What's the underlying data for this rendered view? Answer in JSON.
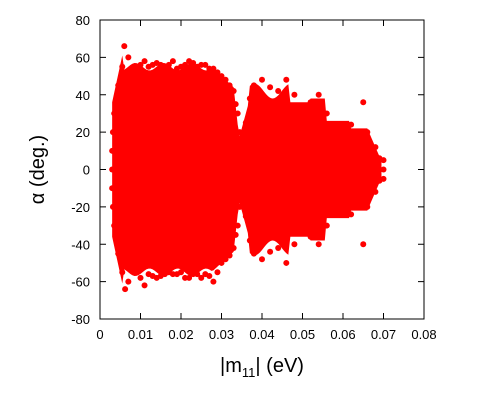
{
  "chart_data": {
    "type": "scatter",
    "title": "",
    "xlabel": {
      "prefix": "|m",
      "subscript": "11",
      "suffix": "| (eV)"
    },
    "ylabel": "α (deg.)",
    "xlim": [
      0,
      0.08
    ],
    "ylim": [
      -80,
      80
    ],
    "xticks": [
      0,
      0.01,
      0.02,
      0.03,
      0.04,
      0.05,
      0.06,
      0.07,
      0.08
    ],
    "xtick_labels": [
      "0",
      "0.01",
      "0.02",
      "0.03",
      "0.04",
      "0.05",
      "0.06",
      "0.07",
      "0.08"
    ],
    "yticks": [
      -80,
      -60,
      -40,
      -20,
      0,
      20,
      40,
      60,
      80
    ],
    "ytick_labels": [
      "-80",
      "-60",
      "-40",
      "-20",
      "0",
      "20",
      "40",
      "60",
      "80"
    ],
    "grid": false,
    "legend": "none",
    "color": "#ff0000",
    "series": [
      {
        "region_note_free": true,
        "points": [
          [
            0.003,
            0.0
          ],
          [
            0.003,
            10.0
          ],
          [
            0.003,
            -10.0
          ],
          [
            0.0032,
            20.0
          ],
          [
            0.0032,
            -20.0
          ],
          [
            0.0035,
            30.0
          ],
          [
            0.0035,
            -30.0
          ],
          [
            0.004,
            36.0
          ],
          [
            0.004,
            -36.0
          ],
          [
            0.0045,
            45.0
          ],
          [
            0.0045,
            -45.0
          ],
          [
            0.0055,
            55.0
          ],
          [
            0.0055,
            -55.0
          ],
          [
            0.006,
            66.0
          ],
          [
            0.0062,
            -64.0
          ],
          [
            0.007,
            60.0
          ],
          [
            0.007,
            -60.0
          ],
          [
            0.008,
            50.0
          ],
          [
            0.008,
            -50.0
          ],
          [
            0.009,
            54.0
          ],
          [
            0.009,
            -54.0
          ],
          [
            0.01,
            56.0
          ],
          [
            0.01,
            -58.0
          ],
          [
            0.011,
            58.0
          ],
          [
            0.011,
            -62.0
          ],
          [
            0.012,
            55.0
          ],
          [
            0.012,
            -56.0
          ],
          [
            0.013,
            56.0
          ],
          [
            0.013,
            -57.0
          ],
          [
            0.014,
            57.0
          ],
          [
            0.014,
            -58.0
          ],
          [
            0.015,
            56.0
          ],
          [
            0.015,
            -57.0
          ],
          [
            0.016,
            54.0
          ],
          [
            0.016,
            -56.0
          ],
          [
            0.017,
            56.0
          ],
          [
            0.017,
            -55.0
          ],
          [
            0.018,
            58.0
          ],
          [
            0.018,
            -56.0
          ],
          [
            0.019,
            54.0
          ],
          [
            0.019,
            -56.0
          ],
          [
            0.02,
            55.0
          ],
          [
            0.02,
            -55.0
          ],
          [
            0.021,
            56.0
          ],
          [
            0.021,
            -58.0
          ],
          [
            0.022,
            58.0
          ],
          [
            0.022,
            -58.0
          ],
          [
            0.023,
            57.0
          ],
          [
            0.023,
            -56.0
          ],
          [
            0.024,
            55.0
          ],
          [
            0.024,
            -56.0
          ],
          [
            0.025,
            56.0
          ],
          [
            0.025,
            -58.0
          ],
          [
            0.026,
            56.0
          ],
          [
            0.026,
            -56.0
          ],
          [
            0.027,
            54.0
          ],
          [
            0.027,
            -57.0
          ],
          [
            0.028,
            54.0
          ],
          [
            0.028,
            -60.0
          ],
          [
            0.029,
            52.0
          ],
          [
            0.029,
            -55.0
          ],
          [
            0.03,
            50.0
          ],
          [
            0.03,
            -50.0
          ],
          [
            0.031,
            48.0
          ],
          [
            0.031,
            -48.0
          ],
          [
            0.032,
            45.0
          ],
          [
            0.032,
            -46.0
          ],
          [
            0.033,
            42.0
          ],
          [
            0.033,
            -42.0
          ],
          [
            0.0335,
            35.0
          ],
          [
            0.0335,
            -35.0
          ],
          [
            0.034,
            30.0
          ],
          [
            0.034,
            -30.0
          ],
          [
            0.0345,
            20.0
          ],
          [
            0.0345,
            -20.0
          ],
          [
            0.035,
            10.0
          ],
          [
            0.035,
            -10.0
          ],
          [
            0.035,
            0.0
          ],
          [
            0.036,
            25.0
          ],
          [
            0.036,
            -25.0
          ],
          [
            0.037,
            38.0
          ],
          [
            0.037,
            -38.0
          ],
          [
            0.038,
            45.0
          ],
          [
            0.038,
            -45.0
          ],
          [
            0.04,
            48.0
          ],
          [
            0.04,
            -48.0
          ],
          [
            0.042,
            44.0
          ],
          [
            0.042,
            -44.0
          ],
          [
            0.044,
            42.0
          ],
          [
            0.044,
            -42.0
          ],
          [
            0.046,
            48.0
          ],
          [
            0.046,
            -50.0
          ],
          [
            0.048,
            40.0
          ],
          [
            0.048,
            -40.0
          ],
          [
            0.05,
            30.0
          ],
          [
            0.05,
            -30.0
          ],
          [
            0.052,
            36.0
          ],
          [
            0.052,
            -36.0
          ],
          [
            0.054,
            40.0
          ],
          [
            0.054,
            -40.0
          ],
          [
            0.056,
            30.0
          ],
          [
            0.056,
            -30.0
          ],
          [
            0.058,
            24.0
          ],
          [
            0.058,
            -24.0
          ],
          [
            0.06,
            20.0
          ],
          [
            0.06,
            -20.0
          ],
          [
            0.062,
            24.0
          ],
          [
            0.062,
            -24.0
          ],
          [
            0.065,
            36.0
          ],
          [
            0.065,
            -40.0
          ],
          [
            0.066,
            20.0
          ],
          [
            0.066,
            -20.0
          ],
          [
            0.068,
            12.0
          ],
          [
            0.068,
            -12.0
          ],
          [
            0.07,
            5.0
          ],
          [
            0.07,
            -5.0
          ],
          [
            0.07,
            0.0
          ],
          [
            0.069,
            6.0
          ],
          [
            0.069,
            -6.0
          ],
          [
            0.054,
            10.0
          ],
          [
            0.054,
            -10.0
          ],
          [
            0.046,
            10.0
          ],
          [
            0.046,
            -10.0
          ],
          [
            0.038,
            20.0
          ],
          [
            0.038,
            -20.0
          ]
        ]
      }
    ]
  }
}
